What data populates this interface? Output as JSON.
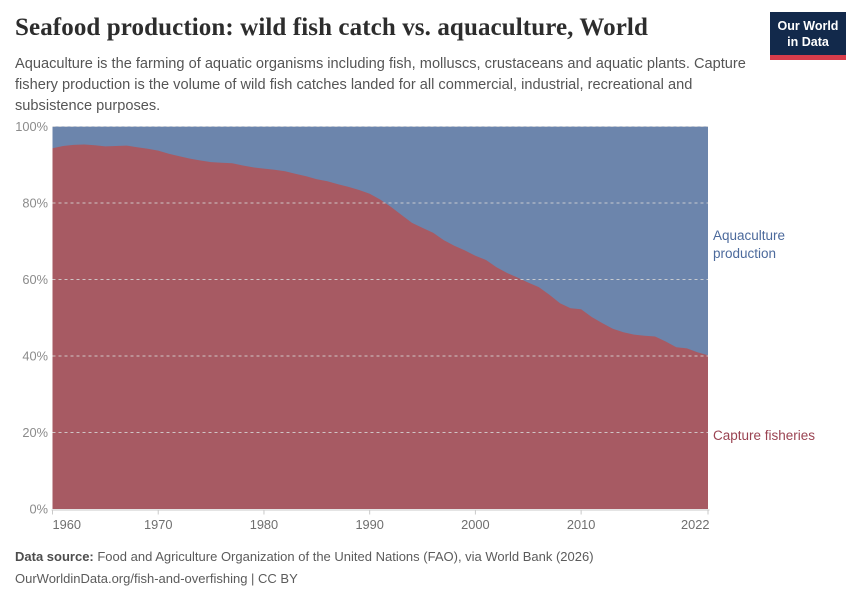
{
  "header": {
    "title": "Seafood production: wild fish catch vs. aquaculture, World",
    "subtitle": "Aquaculture is the farming of aquatic organisms including fish, molluscs, crustaceans and aquatic plants. Capture fishery production is the volume of wild fish catches landed for all commercial, industrial, recreational and subsistence purposes."
  },
  "logo": {
    "line1": "Our World",
    "line2": "in Data",
    "bg_color": "#12294B",
    "stripe_color": "#D73C4B"
  },
  "chart_data": {
    "type": "area",
    "stacked": true,
    "percent_stacked": true,
    "title": "Seafood production: wild fish catch vs. aquaculture, World",
    "xlabel": "",
    "ylabel": "",
    "xlim": [
      1960,
      2022
    ],
    "ylim": [
      0,
      100
    ],
    "grid": "horizontal-dashed",
    "legend_position": "right-edge-labels",
    "y_ticks": [
      0,
      20,
      40,
      60,
      80,
      100
    ],
    "y_tick_suffix": "%",
    "x_ticks": [
      1960,
      1970,
      1980,
      1990,
      2000,
      2010,
      2022
    ],
    "x": [
      1960,
      1961,
      1962,
      1963,
      1964,
      1965,
      1966,
      1967,
      1968,
      1969,
      1970,
      1971,
      1972,
      1973,
      1974,
      1975,
      1976,
      1977,
      1978,
      1979,
      1980,
      1981,
      1982,
      1983,
      1984,
      1985,
      1986,
      1987,
      1988,
      1989,
      1990,
      1991,
      1992,
      1993,
      1994,
      1995,
      1996,
      1997,
      1998,
      1999,
      2000,
      2001,
      2002,
      2003,
      2004,
      2005,
      2006,
      2007,
      2008,
      2009,
      2010,
      2011,
      2012,
      2013,
      2014,
      2015,
      2016,
      2017,
      2018,
      2019,
      2020,
      2021,
      2022
    ],
    "series": [
      {
        "name": "Capture fisheries",
        "stack_order": "bottom",
        "color": "#A75A63",
        "text_color": "#9A4352",
        "values": [
          94.3,
          94.9,
          95.2,
          95.3,
          95.1,
          94.8,
          94.9,
          95.0,
          94.6,
          94.2,
          93.7,
          92.9,
          92.2,
          91.6,
          91.1,
          90.7,
          90.5,
          90.4,
          89.8,
          89.3,
          89.0,
          88.7,
          88.3,
          87.6,
          87.0,
          86.2,
          85.7,
          84.9,
          84.2,
          83.4,
          82.4,
          80.9,
          79.0,
          76.9,
          74.8,
          73.5,
          72.2,
          70.3,
          68.8,
          67.6,
          66.2,
          65.1,
          63.2,
          61.7,
          60.5,
          59.2,
          58.0,
          56.0,
          53.8,
          52.5,
          52.2,
          50.2,
          48.6,
          47.1,
          46.2,
          45.6,
          45.3,
          45.1,
          43.8,
          42.3,
          42.0,
          41.0,
          40.2
        ]
      },
      {
        "name": "Aquaculture production",
        "stack_order": "top",
        "color": "#6C85AC",
        "text_color": "#4C6A9C",
        "values": [
          5.7,
          5.1,
          4.8,
          4.7,
          4.9,
          5.2,
          5.1,
          5.0,
          5.4,
          5.8,
          6.3,
          7.1,
          7.8,
          8.4,
          8.9,
          9.3,
          9.5,
          9.6,
          10.2,
          10.7,
          11.0,
          11.3,
          11.7,
          12.4,
          13.0,
          13.8,
          14.3,
          15.1,
          15.8,
          16.6,
          17.6,
          19.1,
          21.0,
          23.1,
          25.2,
          26.5,
          27.8,
          29.7,
          31.2,
          32.4,
          33.8,
          34.9,
          36.8,
          38.3,
          39.5,
          40.8,
          42.0,
          44.0,
          46.2,
          47.5,
          47.8,
          49.8,
          51.4,
          52.9,
          53.8,
          54.4,
          54.7,
          54.9,
          56.2,
          57.7,
          58.0,
          59.0,
          59.8
        ]
      }
    ]
  },
  "series_labels": {
    "aquaculture": "Aquaculture production",
    "capture": "Capture fisheries"
  },
  "footer": {
    "source_label": "Data source:",
    "source_text": " Food and Agriculture Organization of the United Nations (FAO), via World Bank (2026)",
    "note_url": "OurWorldinData.org/fish-and-overfishing",
    "note_suffix": " | CC BY"
  },
  "colors": {
    "aquaculture_area": "#6C85AC",
    "capture_area": "#A75A63",
    "gridline": "#d8d8d8",
    "axis": "#c9c9c9"
  }
}
